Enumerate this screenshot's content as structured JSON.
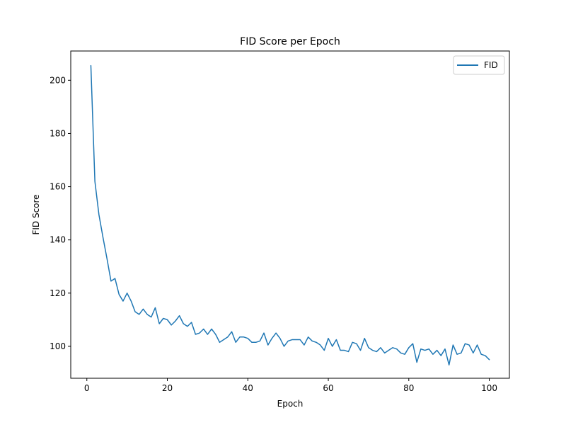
{
  "chart_data": {
    "type": "line",
    "title": "FID Score per Epoch",
    "xlabel": "Epoch",
    "ylabel": "FID Score",
    "xlim": [
      -4,
      105
    ],
    "ylim": [
      88,
      211
    ],
    "xticks": [
      0,
      20,
      40,
      60,
      80,
      100
    ],
    "yticks": [
      100,
      120,
      140,
      160,
      180,
      200
    ],
    "grid": false,
    "legend": {
      "placement": "top-right",
      "entries": [
        "FID"
      ]
    },
    "colors": {
      "FID": "#1f77b4"
    },
    "series": [
      {
        "name": "FID",
        "x": [
          1,
          2,
          3,
          4,
          5,
          6,
          7,
          8,
          9,
          10,
          11,
          12,
          13,
          14,
          15,
          16,
          17,
          18,
          19,
          20,
          21,
          22,
          23,
          24,
          25,
          26,
          27,
          28,
          29,
          30,
          31,
          32,
          33,
          34,
          35,
          36,
          37,
          38,
          39,
          40,
          41,
          42,
          43,
          44,
          45,
          46,
          47,
          48,
          49,
          50,
          51,
          52,
          53,
          54,
          55,
          56,
          57,
          58,
          59,
          60,
          61,
          62,
          63,
          64,
          65,
          66,
          67,
          68,
          69,
          70,
          71,
          72,
          73,
          74,
          75,
          76,
          77,
          78,
          79,
          80,
          81,
          82,
          83,
          84,
          85,
          86,
          87,
          88,
          89,
          90,
          91,
          92,
          93,
          94,
          95,
          96,
          97,
          98,
          99,
          100
        ],
        "values": [
          205.5,
          162.0,
          149.5,
          141.0,
          133.0,
          124.5,
          125.5,
          119.5,
          117.0,
          120.0,
          117.0,
          113.0,
          112.0,
          114.0,
          112.0,
          111.0,
          114.5,
          108.5,
          110.5,
          110.0,
          108.0,
          109.5,
          111.5,
          108.5,
          107.5,
          109.0,
          104.5,
          105.0,
          106.5,
          104.5,
          106.5,
          104.5,
          101.5,
          102.5,
          103.5,
          105.5,
          101.5,
          103.5,
          103.5,
          103.0,
          101.5,
          101.5,
          102.0,
          105.0,
          100.5,
          103.0,
          105.0,
          103.0,
          100.0,
          102.0,
          102.5,
          102.5,
          102.5,
          100.5,
          103.5,
          102.0,
          101.5,
          100.5,
          98.5,
          103.0,
          100.0,
          102.5,
          98.5,
          98.5,
          98.0,
          101.5,
          101.0,
          98.5,
          103.0,
          99.5,
          98.5,
          98.0,
          99.5,
          97.5,
          98.5,
          99.5,
          99.0,
          97.5,
          97.0,
          99.5,
          101.0,
          94.0,
          99.0,
          98.5,
          99.0,
          97.0,
          98.5,
          96.5,
          99.0,
          93.0,
          100.5,
          97.0,
          97.5,
          101.0,
          100.5,
          97.5,
          100.5,
          97.0,
          96.5,
          95.0
        ]
      }
    ]
  }
}
